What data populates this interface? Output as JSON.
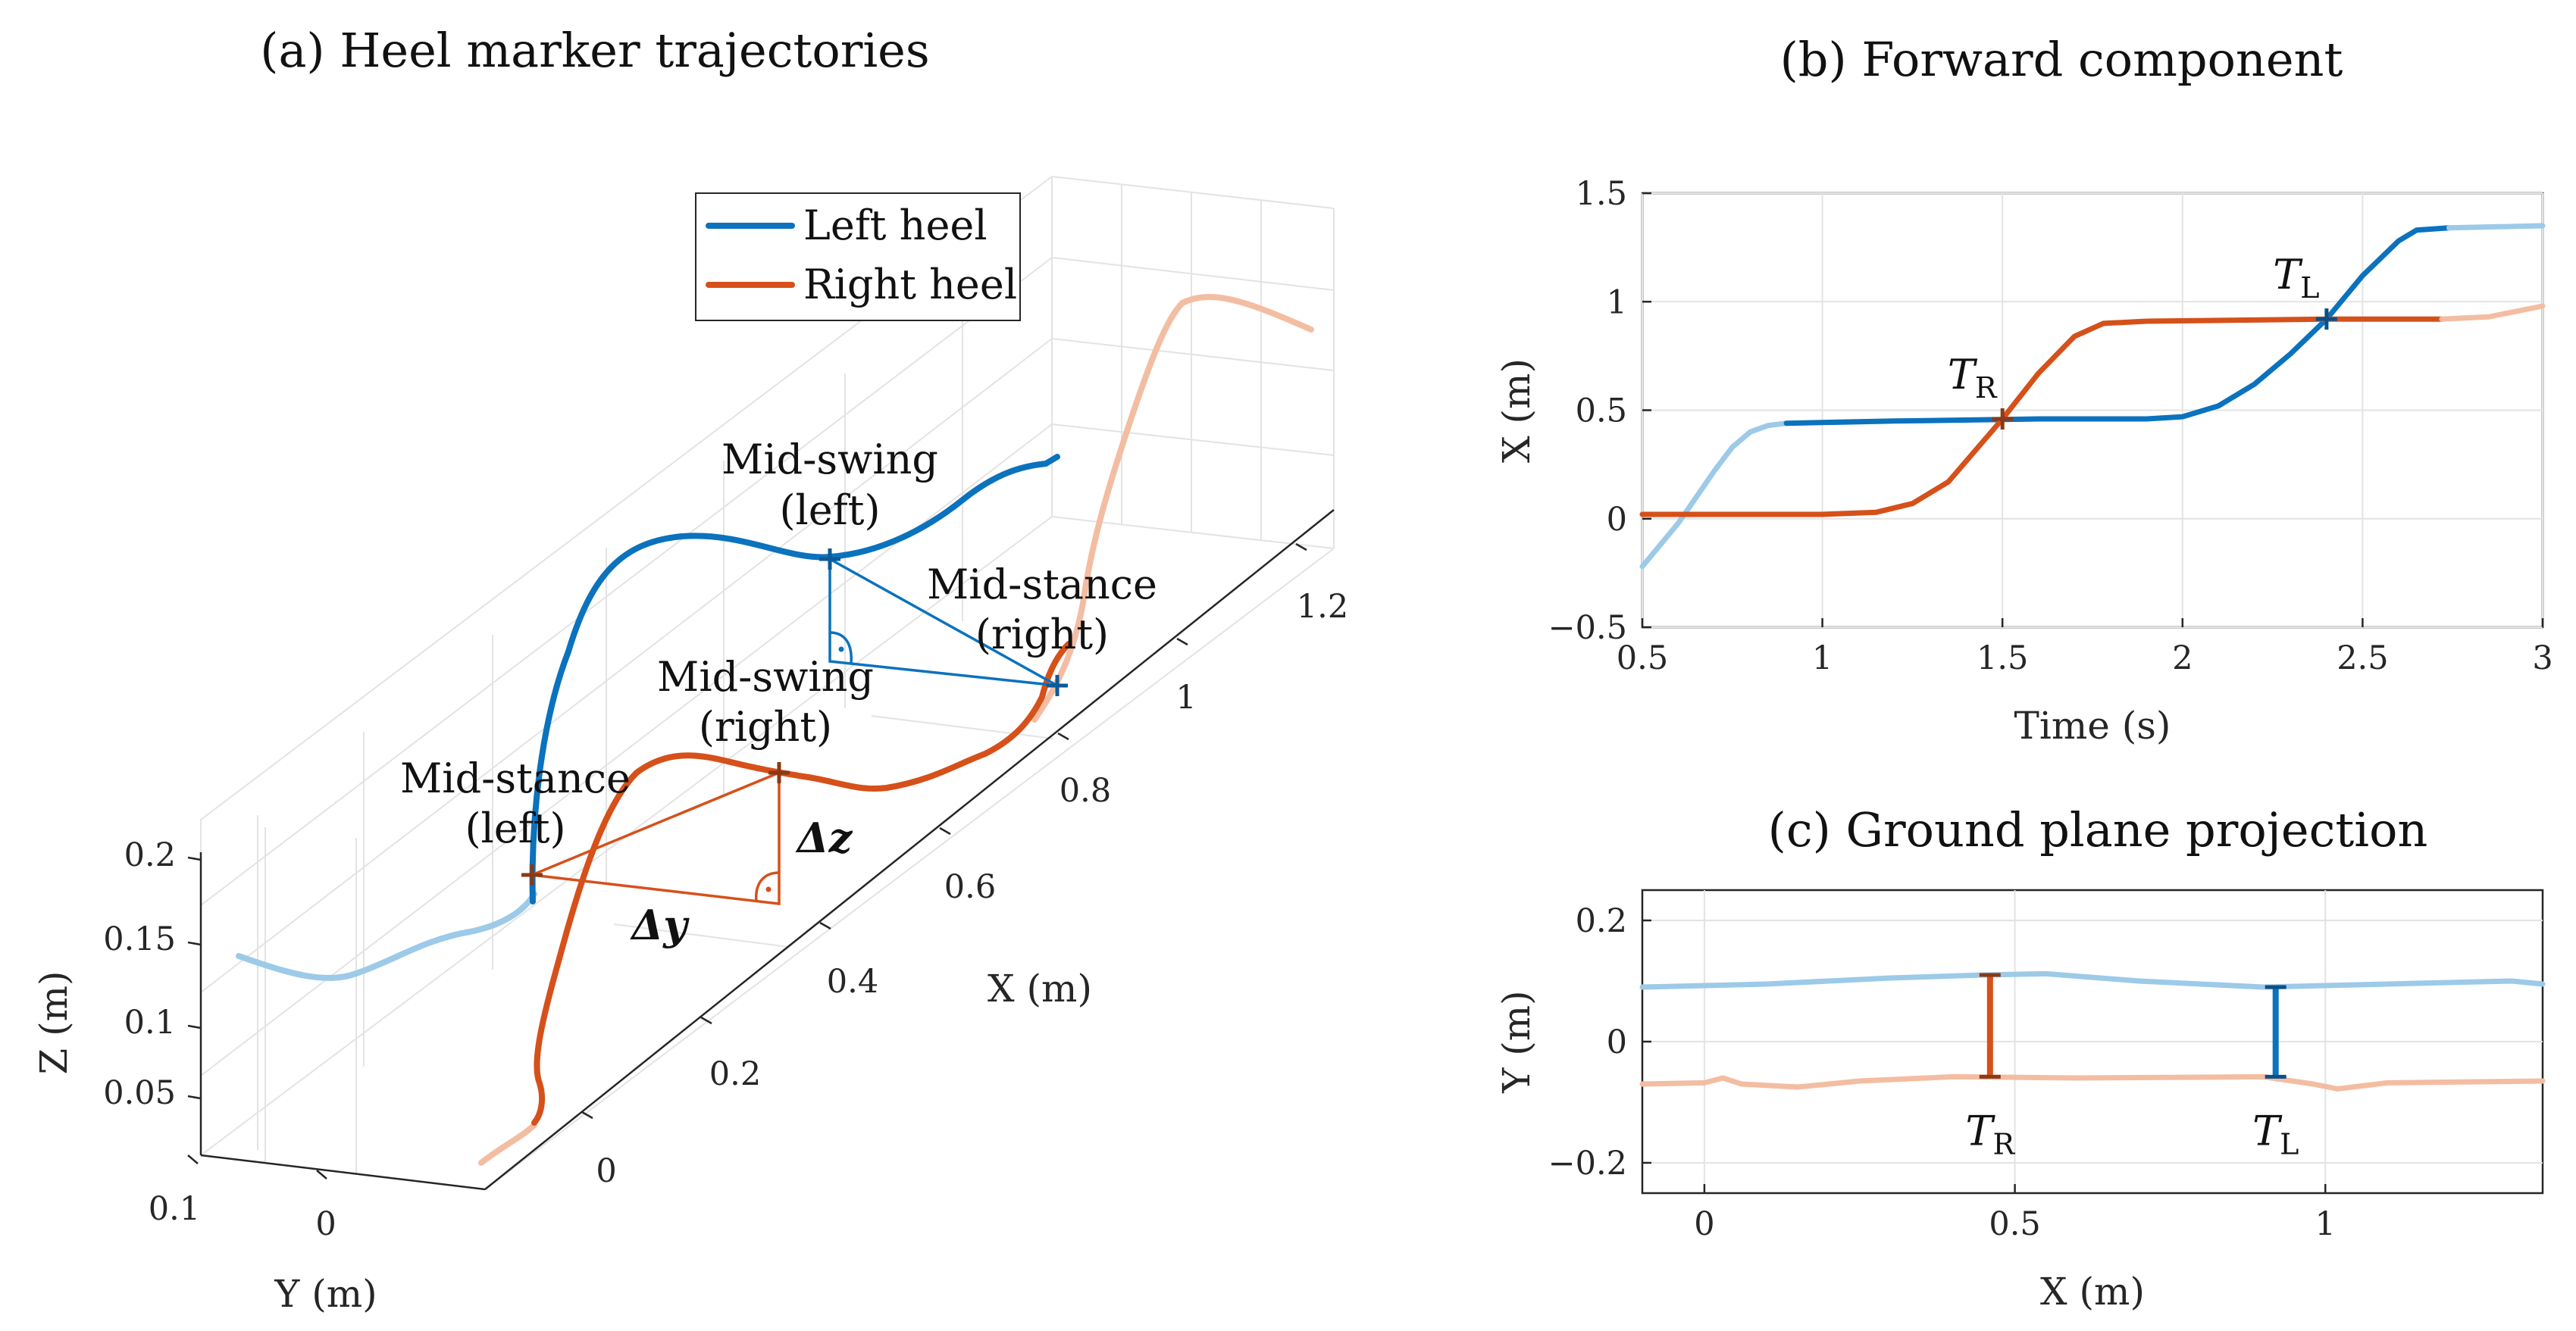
{
  "colors": {
    "left_heel": "#0b72bd",
    "right_heel": "#d6501a",
    "left_faded": "#9ccae8",
    "right_faded": "#f3bda2",
    "grid": "#e3e3e3",
    "axis": "#262626"
  },
  "chart_data": [
    {
      "id": "a",
      "type": "line",
      "subtype": "3d-trajectory",
      "title": "(a) Heel marker trajectories",
      "xlabel": "X (m)",
      "ylabel": "Y (m)",
      "zlabel": "Z (m)",
      "x_ticks": [
        "0",
        "0.2",
        "0.4",
        "0.6",
        "0.8",
        "1",
        "1.2"
      ],
      "y_ticks": [
        "0.1",
        "0"
      ],
      "z_ticks": [
        "0.05",
        "0.1",
        "0.15",
        "0.2"
      ],
      "legend": [
        "Left heel",
        "Right heel"
      ],
      "legend_placement": "top-center",
      "annotations": {
        "mid_swing_left": [
          "Mid-swing",
          "(left)"
        ],
        "mid_stance_right": [
          "Mid-stance",
          "(right)"
        ],
        "mid_swing_right": [
          "Mid-swing",
          "(right)"
        ],
        "mid_stance_left": [
          "Mid-stance",
          "(left)"
        ],
        "dz": "Δz",
        "dy": "Δy"
      }
    },
    {
      "id": "b",
      "type": "line",
      "title": "(b) Forward component",
      "xlabel": "Time (s)",
      "ylabel": "X (m)",
      "xlim": [
        0.5,
        3
      ],
      "ylim": [
        -0.5,
        1.5
      ],
      "x_ticks": [
        "0.5",
        "1",
        "1.5",
        "2",
        "2.5",
        "3"
      ],
      "y_ticks": [
        "−0.5",
        "0",
        "0.5",
        "1",
        "1.5"
      ],
      "x_tick_values": [
        0.5,
        1,
        1.5,
        2,
        2.5,
        3
      ],
      "y_tick_values": [
        -0.5,
        0,
        0.5,
        1,
        1.5
      ],
      "series": [
        {
          "name": "Left heel (faded)",
          "style": "left_faded",
          "points": [
            [
              0.5,
              -0.22
            ],
            [
              0.55,
              -0.12
            ],
            [
              0.6,
              -0.02
            ],
            [
              0.65,
              0.1
            ],
            [
              0.7,
              0.22
            ],
            [
              0.75,
              0.33
            ],
            [
              0.8,
              0.4
            ],
            [
              0.85,
              0.43
            ],
            [
              0.9,
              0.44
            ]
          ]
        },
        {
          "name": "Left heel",
          "style": "left_heel",
          "points": [
            [
              0.9,
              0.44
            ],
            [
              1.2,
              0.45
            ],
            [
              1.6,
              0.46
            ],
            [
              1.9,
              0.46
            ],
            [
              2.0,
              0.47
            ],
            [
              2.1,
              0.52
            ],
            [
              2.2,
              0.62
            ],
            [
              2.3,
              0.76
            ],
            [
              2.4,
              0.92
            ],
            [
              2.5,
              1.12
            ],
            [
              2.6,
              1.28
            ],
            [
              2.65,
              1.33
            ],
            [
              2.74,
              1.34
            ]
          ]
        },
        {
          "name": "Left heel (faded, end)",
          "style": "left_faded",
          "points": [
            [
              2.74,
              1.34
            ],
            [
              3.0,
              1.35
            ]
          ]
        },
        {
          "name": "Right heel",
          "style": "right_heel",
          "points": [
            [
              0.5,
              0.02
            ],
            [
              1.0,
              0.02
            ],
            [
              1.15,
              0.03
            ],
            [
              1.25,
              0.07
            ],
            [
              1.35,
              0.17
            ],
            [
              1.5,
              0.46
            ],
            [
              1.6,
              0.67
            ],
            [
              1.7,
              0.84
            ],
            [
              1.78,
              0.9
            ],
            [
              1.9,
              0.91
            ],
            [
              2.4,
              0.92
            ],
            [
              2.72,
              0.92
            ]
          ]
        },
        {
          "name": "Right heel (faded, end)",
          "style": "right_faded",
          "points": [
            [
              2.72,
              0.92
            ],
            [
              2.85,
              0.93
            ],
            [
              3.0,
              0.98
            ]
          ]
        }
      ],
      "markers": [
        {
          "label": "T",
          "subscript": "R",
          "x": 1.5,
          "y": 0.46,
          "style": "right_heel"
        },
        {
          "label": "T",
          "subscript": "L",
          "x": 2.4,
          "y": 0.92,
          "style": "left_heel"
        }
      ]
    },
    {
      "id": "c",
      "type": "line",
      "title": "(c) Ground plane projection",
      "xlabel": "X (m)",
      "ylabel": "Y (m)",
      "xlim": [
        -0.1,
        1.35
      ],
      "ylim": [
        -0.25,
        0.25
      ],
      "x_ticks": [
        "0",
        "0.5",
        "1"
      ],
      "y_ticks": [
        "−0.2",
        "0",
        "0.2"
      ],
      "x_tick_values": [
        0,
        0.5,
        1
      ],
      "y_tick_values": [
        -0.2,
        0,
        0.2
      ],
      "series": [
        {
          "name": "Left heel",
          "style": "left_faded",
          "points": [
            [
              -0.1,
              0.09
            ],
            [
              0.1,
              0.095
            ],
            [
              0.3,
              0.105
            ],
            [
              0.45,
              0.11
            ],
            [
              0.55,
              0.112
            ],
            [
              0.7,
              0.1
            ],
            [
              0.9,
              0.09
            ],
            [
              1.1,
              0.095
            ],
            [
              1.3,
              0.1
            ],
            [
              1.35,
              0.095
            ]
          ]
        },
        {
          "name": "Right heel",
          "style": "right_faded",
          "points": [
            [
              -0.1,
              -0.07
            ],
            [
              0.0,
              -0.068
            ],
            [
              0.03,
              -0.06
            ],
            [
              0.06,
              -0.07
            ],
            [
              0.15,
              -0.075
            ],
            [
              0.25,
              -0.065
            ],
            [
              0.4,
              -0.058
            ],
            [
              0.6,
              -0.06
            ],
            [
              0.9,
              -0.058
            ],
            [
              0.98,
              -0.07
            ],
            [
              1.02,
              -0.078
            ],
            [
              1.1,
              -0.068
            ],
            [
              1.35,
              -0.065
            ]
          ]
        }
      ],
      "markers": [
        {
          "label": "T",
          "subscript": "R",
          "x": 0.46,
          "y_top": 0.11,
          "y_bottom": -0.058,
          "style": "right_heel"
        },
        {
          "label": "T",
          "subscript": "L",
          "x": 0.92,
          "y_top": 0.09,
          "y_bottom": -0.058,
          "style": "left_heel"
        }
      ]
    }
  ]
}
